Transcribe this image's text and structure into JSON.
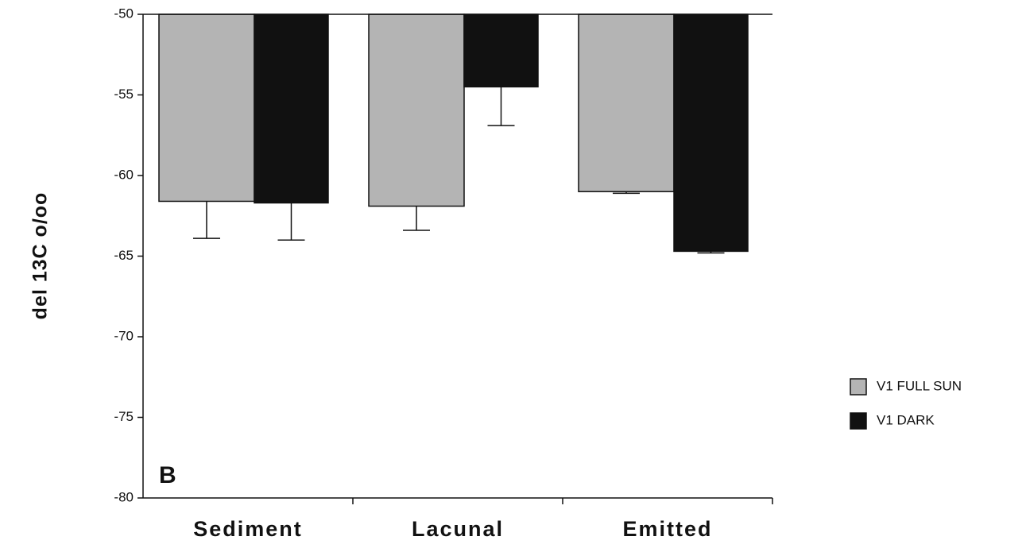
{
  "chart_data": {
    "type": "bar",
    "y_label": "del 13C o/oo",
    "annotation": "B",
    "categories": [
      "Sediment",
      "Lacunal",
      "Emitted"
    ],
    "series": [
      {
        "name": "V1 FULL SUN",
        "color": "#b4b4b4",
        "values": [
          -61.6,
          -61.9,
          -61.0
        ],
        "errors": [
          2.3,
          1.5,
          0.1
        ]
      },
      {
        "name": "V1 DARK",
        "color": "#111111",
        "values": [
          -61.7,
          -54.5,
          -64.7
        ],
        "errors": [
          2.3,
          2.4,
          0.1
        ]
      }
    ],
    "ylim": [
      -80,
      -50
    ],
    "yticks": [
      -80,
      -75,
      -70,
      -65,
      -60,
      -55,
      -50
    ]
  }
}
